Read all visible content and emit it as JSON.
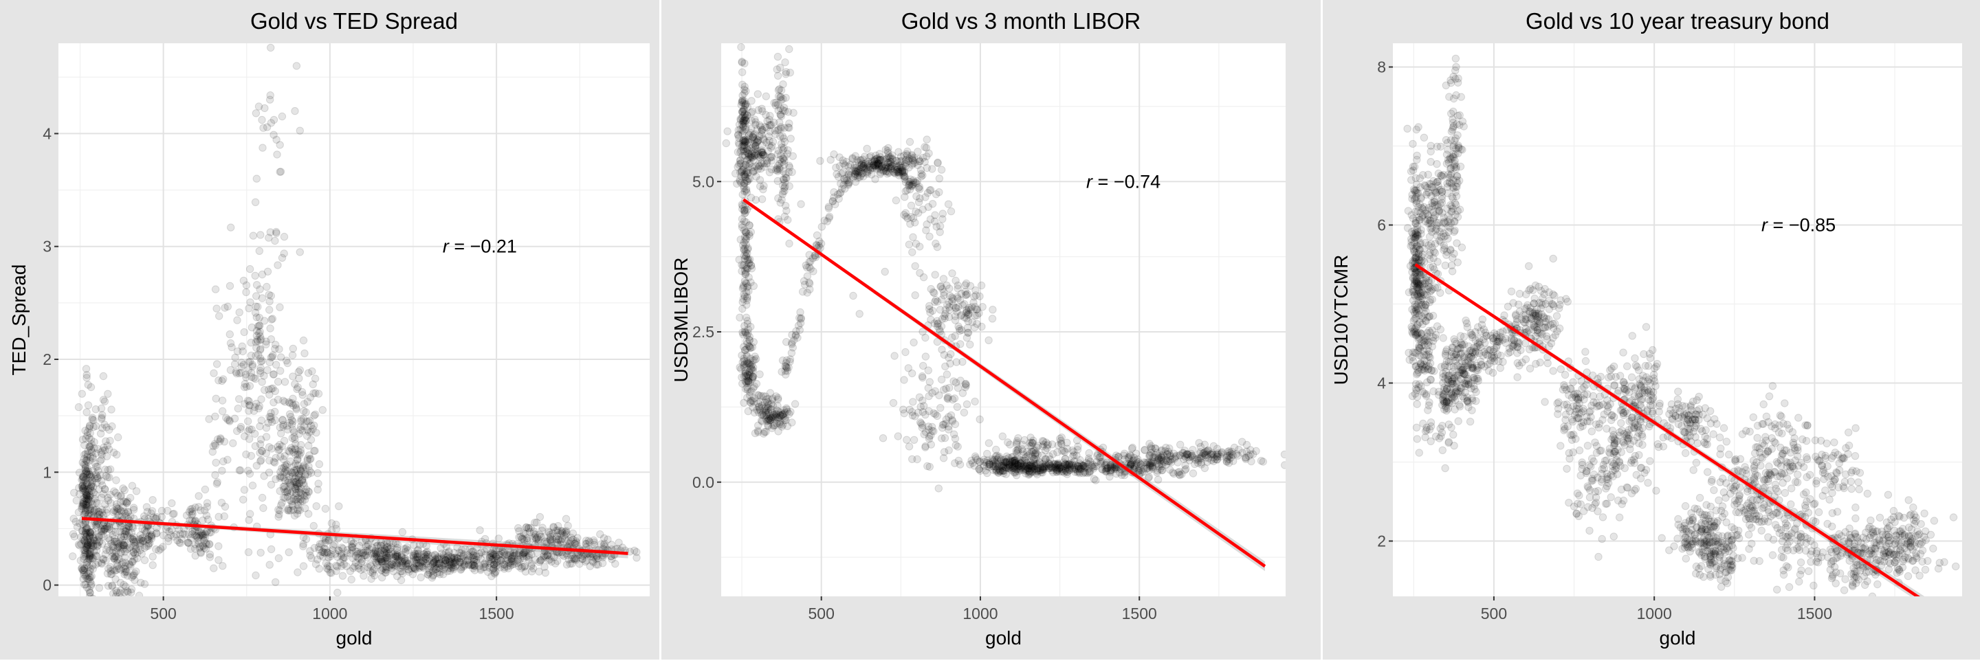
{
  "chart_data": [
    {
      "type": "scatter",
      "title": "Gold vs TED Spread",
      "xlabel": "gold",
      "ylabel": "TED_Spread",
      "xlim": [
        185,
        1960
      ],
      "ylim": [
        -0.1,
        4.8
      ],
      "xticks": [
        500,
        1000,
        1500
      ],
      "yticks": [
        0,
        1,
        2,
        3,
        4
      ],
      "ytick_labels": [
        "0",
        "1",
        "2",
        "3",
        "4"
      ],
      "grid": true,
      "annotation": {
        "prefix": "r",
        "text": " = −0.21",
        "x": 1450,
        "y": 3.0
      },
      "regression": {
        "x1": 255,
        "y1": 0.59,
        "x2": 1895,
        "y2": 0.28
      },
      "clusters": [
        {
          "cx": 270,
          "cy": 0.7,
          "sx": 10,
          "sy": 0.45,
          "n": 220
        },
        {
          "cx": 300,
          "cy": 0.55,
          "sx": 28,
          "sy": 0.35,
          "n": 180
        },
        {
          "cx": 320,
          "cy": 1.3,
          "sx": 25,
          "sy": 0.25,
          "n": 40
        },
        {
          "cx": 380,
          "cy": 0.4,
          "sx": 30,
          "sy": 0.25,
          "n": 200
        },
        {
          "cx": 440,
          "cy": 0.45,
          "sx": 20,
          "sy": 0.12,
          "n": 40
        },
        {
          "cx": 530,
          "cy": 0.5,
          "sx": 40,
          "sy": 0.1,
          "n": 60
        },
        {
          "cx": 610,
          "cy": 0.48,
          "sx": 25,
          "sy": 0.12,
          "n": 70
        },
        {
          "cx": 660,
          "cy": 1.2,
          "sx": 15,
          "sy": 0.6,
          "n": 30
        },
        {
          "cx": 760,
          "cy": 1.7,
          "sx": 45,
          "sy": 0.6,
          "n": 140
        },
        {
          "cx": 800,
          "cy": 2.1,
          "sx": 25,
          "sy": 0.2,
          "n": 40
        },
        {
          "cx": 820,
          "cy": 3.4,
          "sx": 35,
          "sy": 0.7,
          "n": 30
        },
        {
          "cx": 880,
          "cy": 1.2,
          "sx": 40,
          "sy": 0.4,
          "n": 150
        },
        {
          "cx": 900,
          "cy": 0.9,
          "sx": 25,
          "sy": 0.15,
          "n": 90
        },
        {
          "cx": 930,
          "cy": 1.5,
          "sx": 25,
          "sy": 0.25,
          "n": 40
        },
        {
          "cx": 1000,
          "cy": 0.3,
          "sx": 40,
          "sy": 0.12,
          "n": 60
        },
        {
          "cx": 1150,
          "cy": 0.25,
          "sx": 80,
          "sy": 0.08,
          "n": 200
        },
        {
          "cx": 1300,
          "cy": 0.2,
          "sx": 80,
          "sy": 0.06,
          "n": 180
        },
        {
          "cx": 1500,
          "cy": 0.22,
          "sx": 90,
          "sy": 0.07,
          "n": 180
        },
        {
          "cx": 1640,
          "cy": 0.38,
          "sx": 70,
          "sy": 0.08,
          "n": 160
        },
        {
          "cx": 1780,
          "cy": 0.28,
          "sx": 60,
          "sy": 0.06,
          "n": 100
        }
      ],
      "points": [
        [
          900,
          4.6
        ],
        [
          820,
          4.3
        ],
        [
          800,
          4.05
        ],
        [
          895,
          4.2
        ],
        [
          850,
          3.9
        ],
        [
          780,
          3.6
        ],
        [
          835,
          3.05
        ],
        [
          910,
          2.95
        ],
        [
          660,
          2.45
        ],
        [
          700,
          2.65
        ],
        [
          760,
          2.8
        ]
      ]
    },
    {
      "type": "scatter",
      "title": "Gold vs 3 month LIBOR",
      "xlabel": "gold",
      "ylabel": "USD3MLIBOR",
      "xlim": [
        185,
        1960
      ],
      "ylim": [
        -1.9,
        7.3
      ],
      "xticks": [
        500,
        1000,
        1500
      ],
      "yticks": [
        0.0,
        2.5,
        5.0
      ],
      "ytick_labels": [
        "0.0",
        "2.5",
        "5.0"
      ],
      "grid": true,
      "annotation": {
        "prefix": "r",
        "text": " = −0.74",
        "x": 1450,
        "y": 5.0
      },
      "regression": {
        "x1": 255,
        "y1": 4.7,
        "x2": 1895,
        "y2": -1.4
      },
      "clusters": [
        {
          "cx": 258,
          "cy": 5.7,
          "sx": 8,
          "sy": 0.6,
          "n": 120
        },
        {
          "cx": 262,
          "cy": 3.6,
          "sx": 8,
          "sy": 0.8,
          "n": 120
        },
        {
          "cx": 275,
          "cy": 1.9,
          "sx": 12,
          "sy": 0.3,
          "n": 80
        },
        {
          "cx": 300,
          "cy": 5.6,
          "sx": 30,
          "sy": 0.4,
          "n": 150
        },
        {
          "cx": 320,
          "cy": 1.2,
          "sx": 20,
          "sy": 0.2,
          "n": 60
        },
        {
          "cx": 360,
          "cy": 1.1,
          "sx": 25,
          "sy": 0.1,
          "n": 60
        },
        {
          "cx": 380,
          "cy": 5.7,
          "sx": 15,
          "sy": 0.8,
          "n": 100
        },
        {
          "cx": 690,
          "cy": 5.3,
          "sx": 70,
          "sy": 0.12,
          "n": 150
        },
        {
          "cx": 820,
          "cy": 4.5,
          "sx": 40,
          "sy": 0.5,
          "n": 60
        },
        {
          "cx": 920,
          "cy": 2.9,
          "sx": 50,
          "sy": 0.25,
          "n": 120
        },
        {
          "cx": 870,
          "cy": 1.2,
          "sx": 60,
          "sy": 0.5,
          "n": 120
        },
        {
          "cx": 1100,
          "cy": 0.3,
          "sx": 60,
          "sy": 0.07,
          "n": 150
        },
        {
          "cx": 1250,
          "cy": 0.25,
          "sx": 110,
          "sy": 0.05,
          "n": 250
        },
        {
          "cx": 1200,
          "cy": 0.55,
          "sx": 80,
          "sy": 0.1,
          "n": 80
        },
        {
          "cx": 1500,
          "cy": 0.3,
          "sx": 90,
          "sy": 0.1,
          "n": 150
        },
        {
          "cx": 1700,
          "cy": 0.45,
          "sx": 110,
          "sy": 0.08,
          "n": 150
        }
      ],
      "points": [
        [
          600,
          3.1
        ],
        [
          620,
          2.8
        ],
        [
          700,
          3.5
        ],
        [
          730,
          2.1
        ],
        [
          760,
          1.7
        ]
      ],
      "paths": [
        {
          "x": [
            380,
            400,
            420,
            440,
            460,
            480,
            500,
            520,
            540,
            560,
            580,
            600,
            620,
            640,
            660,
            680,
            700,
            720,
            740,
            760,
            780,
            800
          ],
          "y": [
            1.8,
            2.1,
            2.5,
            3.0,
            3.5,
            3.8,
            4.1,
            4.4,
            4.7,
            4.9,
            5.0,
            5.1,
            5.2,
            5.25,
            5.3,
            5.3,
            5.28,
            5.25,
            5.2,
            5.1,
            5.0,
            4.9
          ],
          "n": 200,
          "jitter": 0.06
        }
      ]
    },
    {
      "type": "scatter",
      "title": "Gold vs 10 year treasury bond",
      "xlabel": "gold",
      "ylabel": "USD10YTCMR",
      "xlim": [
        185,
        1960
      ],
      "ylim": [
        1.3,
        8.3
      ],
      "xticks": [
        500,
        1000,
        1500
      ],
      "yticks": [
        2,
        4,
        6,
        8
      ],
      "ytick_labels": [
        "2",
        "4",
        "6",
        "8"
      ],
      "grid": true,
      "annotation": {
        "prefix": "r",
        "text": " = −0.85",
        "x": 1450,
        "y": 6.0
      },
      "regression": {
        "x1": 255,
        "y1": 5.5,
        "x2": 1895,
        "y2": 1.1
      },
      "clusters": [
        {
          "cx": 260,
          "cy": 5.5,
          "sx": 10,
          "sy": 0.7,
          "n": 220
        },
        {
          "cx": 285,
          "cy": 4.5,
          "sx": 20,
          "sy": 0.6,
          "n": 150
        },
        {
          "cx": 320,
          "cy": 6.1,
          "sx": 20,
          "sy": 0.4,
          "n": 120
        },
        {
          "cx": 355,
          "cy": 3.8,
          "sx": 15,
          "sy": 0.3,
          "n": 60
        },
        {
          "cx": 375,
          "cy": 6.7,
          "sx": 12,
          "sy": 0.6,
          "n": 120
        },
        {
          "cx": 400,
          "cy": 4.1,
          "sx": 30,
          "sy": 0.25,
          "n": 150
        },
        {
          "cx": 460,
          "cy": 4.5,
          "sx": 30,
          "sy": 0.15,
          "n": 60
        },
        {
          "cx": 560,
          "cy": 4.6,
          "sx": 40,
          "sy": 0.2,
          "n": 80
        },
        {
          "cx": 640,
          "cy": 4.8,
          "sx": 35,
          "sy": 0.25,
          "n": 120
        },
        {
          "cx": 760,
          "cy": 3.7,
          "sx": 40,
          "sy": 0.3,
          "n": 100
        },
        {
          "cx": 800,
          "cy": 2.6,
          "sx": 40,
          "sy": 0.3,
          "n": 60
        },
        {
          "cx": 900,
          "cy": 3.3,
          "sx": 50,
          "sy": 0.4,
          "n": 150
        },
        {
          "cx": 950,
          "cy": 3.8,
          "sx": 40,
          "sy": 0.25,
          "n": 100
        },
        {
          "cx": 1100,
          "cy": 3.5,
          "sx": 40,
          "sy": 0.2,
          "n": 100
        },
        {
          "cx": 1150,
          "cy": 2.1,
          "sx": 50,
          "sy": 0.15,
          "n": 120
        },
        {
          "cx": 1200,
          "cy": 1.8,
          "sx": 40,
          "sy": 0.15,
          "n": 100
        },
        {
          "cx": 1300,
          "cy": 2.6,
          "sx": 70,
          "sy": 0.3,
          "n": 180
        },
        {
          "cx": 1380,
          "cy": 3.2,
          "sx": 50,
          "sy": 0.25,
          "n": 80
        },
        {
          "cx": 1450,
          "cy": 2.0,
          "sx": 50,
          "sy": 0.25,
          "n": 80
        },
        {
          "cx": 1550,
          "cy": 2.8,
          "sx": 50,
          "sy": 0.3,
          "n": 80
        },
        {
          "cx": 1620,
          "cy": 1.8,
          "sx": 50,
          "sy": 0.2,
          "n": 120
        },
        {
          "cx": 1750,
          "cy": 2.0,
          "sx": 70,
          "sy": 0.2,
          "n": 180
        }
      ],
      "points": [
        [
          380,
          7.85
        ],
        [
          375,
          7.6
        ],
        [
          330,
          3.3
        ],
        [
          340,
          3.15
        ]
      ]
    }
  ],
  "style": {
    "outer_background": "#e5e5e5",
    "panel_background": "#ffffff",
    "grid_major": "#e2e2e2",
    "grid_minor": "#f0f0f0",
    "tick_label_color": "#4d4d4d",
    "text_color": "#000000",
    "point_color": "#000000",
    "line_color": "#ff0000",
    "band_color": "#999999"
  }
}
